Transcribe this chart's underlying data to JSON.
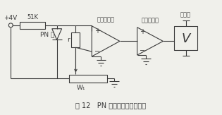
{
  "title": "图 12   PN 结热电阻实验电路图",
  "label_diff_amp": "差动放大器",
  "label_volt_amp": "电压放大器",
  "label_voltmeter": "电压表",
  "label_4v": "+4V",
  "label_51k": "51K",
  "label_pn": "PN 结",
  "label_r": "r",
  "label_w1": "W₁",
  "bg_color": "#f0f0eb",
  "line_color": "#3a3a3a",
  "title_fontsize": 7.5
}
